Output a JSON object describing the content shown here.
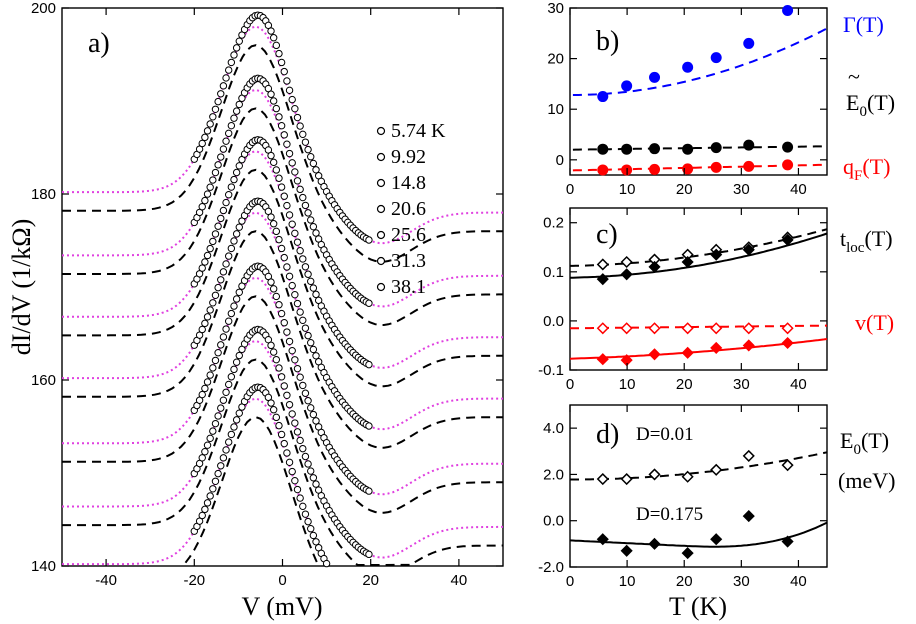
{
  "chart_data": [
    {
      "id": "a",
      "type": "line",
      "panel_label": "a)",
      "xlabel": "V (mV)",
      "ylabel": "dI/dV (1/kΩ)",
      "xlim": [
        -50,
        50
      ],
      "ylim": [
        140,
        200
      ],
      "xticks": [
        -40,
        -20,
        0,
        20,
        40
      ],
      "yticks": [
        140,
        160,
        180,
        200
      ],
      "legend_title": "",
      "legend": [
        "5.74 K",
        "9.92",
        "14.8",
        "20.6",
        "25.6",
        "31.3",
        "38.1"
      ],
      "series": [
        {
          "name": "5.74 K",
          "offset": 36.0,
          "data_range": [
            -20,
            20
          ]
        },
        {
          "name": "9.92",
          "offset": 29.2,
          "data_range": [
            -20,
            20
          ]
        },
        {
          "name": "14.8",
          "offset": 22.6,
          "data_range": [
            -20,
            20
          ]
        },
        {
          "name": "20.6",
          "offset": 16.0,
          "data_range": [
            -20,
            20
          ]
        },
        {
          "name": "25.6",
          "offset": 9.0,
          "data_range": [
            -20,
            20
          ]
        },
        {
          "name": "31.3",
          "offset": 2.2,
          "data_range": [
            -20,
            20
          ]
        },
        {
          "name": "38.1",
          "offset": -4.0,
          "data_range": [
            -20,
            20
          ]
        }
      ]
    },
    {
      "id": "b",
      "type": "scatter",
      "panel_label": "b)",
      "xlim": [
        0,
        45
      ],
      "ylim": [
        -3,
        30
      ],
      "xticks": [
        0,
        10,
        20,
        30,
        40
      ],
      "yticks": [
        0,
        10,
        20,
        30
      ],
      "series": [
        {
          "name": "Γ(T)",
          "color": "#0000ff",
          "x": [
            5.74,
            9.92,
            14.8,
            20.6,
            25.6,
            31.3,
            38.1
          ],
          "y": [
            12.5,
            14.6,
            16.3,
            18.3,
            20.2,
            23.0,
            29.5
          ]
        },
        {
          "name": "Ẽ0(T)",
          "color": "#000000",
          "x": [
            5.74,
            9.92,
            14.8,
            20.6,
            25.6,
            31.3,
            38.1
          ],
          "y": [
            2.1,
            2.1,
            2.2,
            2.1,
            2.4,
            2.9,
            2.5
          ]
        },
        {
          "name": "qF(T)",
          "color": "#ff0000",
          "x": [
            5.74,
            9.92,
            14.8,
            20.6,
            25.6,
            31.3,
            38.1
          ],
          "y": [
            -2.0,
            -2.0,
            -1.9,
            -1.8,
            -1.5,
            -1.3,
            -1.0
          ]
        }
      ],
      "labels": {
        "gamma": "Γ(T)",
        "e0_main": "E",
        "e0_sub": "0",
        "e0_tail": "(T)",
        "e0_tilde": "~",
        "qf_main": "q",
        "qf_sub": "F",
        "qf_tail": "(T)"
      }
    },
    {
      "id": "c",
      "type": "scatter",
      "panel_label": "c)",
      "xlim": [
        0,
        45
      ],
      "ylim": [
        -0.1,
        0.23
      ],
      "xticks": [
        0,
        10,
        20,
        30,
        40
      ],
      "yticks": [
        -0.1,
        0.0,
        0.1,
        0.2
      ],
      "ytick_labels": [
        "-0.1",
        "0.0",
        "0.1",
        "0.2"
      ],
      "series": [
        {
          "name": "tloc open",
          "color": "#000000",
          "marker": "diamond-open",
          "x": [
            5.74,
            9.92,
            14.8,
            20.6,
            25.6,
            31.3,
            38.1
          ],
          "y": [
            0.115,
            0.12,
            0.125,
            0.135,
            0.145,
            0.15,
            0.17
          ]
        },
        {
          "name": "tloc filled",
          "color": "#000000",
          "marker": "diamond-filled",
          "x": [
            5.74,
            9.92,
            14.8,
            20.6,
            25.6,
            31.3,
            38.1
          ],
          "y": [
            0.085,
            0.095,
            0.11,
            0.12,
            0.135,
            0.145,
            0.165
          ]
        },
        {
          "name": "v open",
          "color": "#ff0000",
          "marker": "diamond-open",
          "x": [
            5.74,
            9.92,
            14.8,
            20.6,
            25.6,
            31.3,
            38.1
          ],
          "y": [
            -0.015,
            -0.015,
            -0.015,
            -0.015,
            -0.015,
            -0.015,
            -0.015
          ]
        },
        {
          "name": "v filled",
          "color": "#ff0000",
          "marker": "diamond-filled",
          "x": [
            5.74,
            9.92,
            14.8,
            20.6,
            25.6,
            31.3,
            38.1
          ],
          "y": [
            -0.078,
            -0.08,
            -0.068,
            -0.065,
            -0.055,
            -0.05,
            -0.045
          ]
        }
      ],
      "labels": {
        "t_main": "t",
        "t_sub": "loc",
        "t_tail": "(T)",
        "v": "v(T)"
      }
    },
    {
      "id": "d",
      "type": "scatter",
      "panel_label": "d)",
      "xlabel": "T (K)",
      "xlim": [
        0,
        45
      ],
      "ylim": [
        -2.0,
        5.0
      ],
      "xticks": [
        0,
        10,
        20,
        30,
        40
      ],
      "yticks": [
        -2.0,
        0.0,
        2.0,
        4.0
      ],
      "ytick_labels": [
        "-2.0",
        "0.0",
        "2.0",
        "4.0"
      ],
      "series": [
        {
          "name": "D=0.01",
          "color": "#000000",
          "marker": "diamond-open",
          "x": [
            5.74,
            9.92,
            14.8,
            20.6,
            25.6,
            31.3,
            38.1
          ],
          "y": [
            1.8,
            1.8,
            2.0,
            1.9,
            2.2,
            2.8,
            2.4
          ]
        },
        {
          "name": "D=0.175",
          "color": "#000000",
          "marker": "diamond-filled",
          "x": [
            5.74,
            9.92,
            14.8,
            20.6,
            25.6,
            31.3,
            38.1
          ],
          "y": [
            -0.8,
            -1.3,
            -1.0,
            -1.4,
            -0.8,
            0.2,
            -0.9
          ]
        }
      ],
      "labels": {
        "e_main": "E",
        "e_sub": "0",
        "e_tail": "(T)",
        "unit": "(meV)",
        "d1": "D=0.01",
        "d2": "D=0.175"
      }
    }
  ]
}
